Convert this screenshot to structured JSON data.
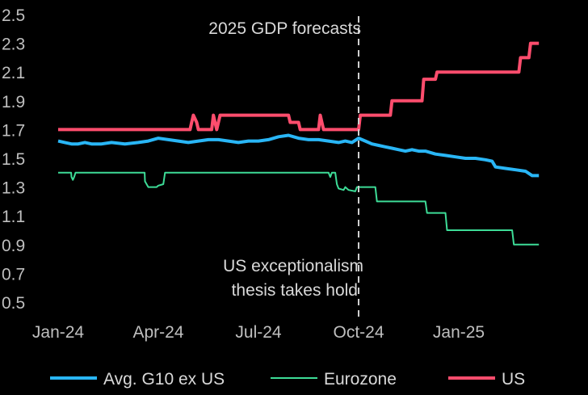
{
  "chart_data": {
    "type": "line",
    "title": "",
    "xlabel": "",
    "ylabel": "",
    "ylim": [
      0.5,
      2.5
    ],
    "xlim": [
      0,
      15
    ],
    "y_ticks": [
      "0.5",
      "0.7",
      "0.9",
      "1.1",
      "1.3",
      "1.5",
      "1.7",
      "1.9",
      "2.1",
      "2.3",
      "2.5"
    ],
    "x_ticks": [
      {
        "label": "Jan-24",
        "x": 0
      },
      {
        "label": "Apr-24",
        "x": 3
      },
      {
        "label": "Jul-24",
        "x": 6
      },
      {
        "label": "Oct-24",
        "x": 9
      },
      {
        "label": "Jan-25",
        "x": 12
      }
    ],
    "annotations": {
      "top": "2025 GDP forecasts",
      "bottom_line1": "US exceptionalism",
      "bottom_line2": "thesis takes hold",
      "vline_x": 9
    },
    "legend_position": "bottom",
    "series": [
      {
        "name": "Avg. G10 ex US",
        "color": "#29b6f6",
        "x": [
          0,
          0.2,
          0.4,
          0.6,
          0.8,
          1.0,
          1.3,
          1.6,
          2.0,
          2.4,
          2.7,
          3.0,
          3.3,
          3.6,
          3.9,
          4.2,
          4.5,
          4.8,
          5.1,
          5.4,
          5.7,
          6.0,
          6.3,
          6.6,
          6.9,
          7.2,
          7.5,
          7.8,
          8.1,
          8.4,
          8.6,
          8.8,
          9.0,
          9.2,
          9.4,
          9.6,
          9.8,
          10.0,
          10.2,
          10.4,
          10.6,
          10.8,
          11.0,
          11.3,
          11.6,
          11.9,
          12.2,
          12.5,
          12.8,
          13.0,
          13.1,
          13.4,
          13.7,
          14.0,
          14.2,
          14.4
        ],
        "values": [
          1.62,
          1.61,
          1.6,
          1.6,
          1.61,
          1.6,
          1.6,
          1.61,
          1.6,
          1.61,
          1.62,
          1.64,
          1.63,
          1.62,
          1.61,
          1.62,
          1.63,
          1.63,
          1.62,
          1.61,
          1.62,
          1.62,
          1.63,
          1.65,
          1.66,
          1.64,
          1.63,
          1.63,
          1.62,
          1.61,
          1.62,
          1.61,
          1.64,
          1.62,
          1.6,
          1.59,
          1.58,
          1.57,
          1.56,
          1.55,
          1.56,
          1.55,
          1.55,
          1.53,
          1.52,
          1.51,
          1.5,
          1.5,
          1.49,
          1.48,
          1.44,
          1.43,
          1.42,
          1.41,
          1.38,
          1.38
        ]
      },
      {
        "name": "Eurozone",
        "color": "#3ddc97",
        "x": [
          0,
          0.39,
          0.4,
          0.44,
          0.48,
          0.52,
          2.59,
          2.6,
          2.7,
          2.95,
          3.0,
          3.15,
          3.2,
          8.1,
          8.15,
          8.2,
          8.3,
          8.35,
          8.4,
          8.55,
          8.6,
          8.7,
          8.9,
          8.95,
          9.0,
          9.5,
          9.55,
          10.3,
          10.35,
          11.0,
          11.05,
          11.6,
          11.65,
          12.3,
          12.35,
          13.6,
          13.65,
          14.4
        ],
        "values": [
          1.4,
          1.4,
          1.37,
          1.35,
          1.37,
          1.4,
          1.4,
          1.34,
          1.3,
          1.3,
          1.31,
          1.32,
          1.4,
          1.4,
          1.37,
          1.4,
          1.4,
          1.32,
          1.29,
          1.28,
          1.3,
          1.28,
          1.27,
          1.3,
          1.3,
          1.3,
          1.2,
          1.2,
          1.2,
          1.2,
          1.12,
          1.12,
          1.0,
          1.0,
          1.0,
          1.0,
          0.9,
          0.9
        ]
      },
      {
        "name": "US",
        "color": "#ff4d6d",
        "x": [
          0,
          3.95,
          4.0,
          4.05,
          4.15,
          4.2,
          4.6,
          4.65,
          4.75,
          4.8,
          4.85,
          4.9,
          6.9,
          6.95,
          7.0,
          7.2,
          7.25,
          7.8,
          7.85,
          7.9,
          7.95,
          8.0,
          9.0,
          9.05,
          9.95,
          10.0,
          10.9,
          10.95,
          11.3,
          11.35,
          12.5,
          12.55,
          13.8,
          13.85,
          14.1,
          14.15,
          14.4
        ],
        "values": [
          1.7,
          1.7,
          1.75,
          1.8,
          1.75,
          1.7,
          1.7,
          1.8,
          1.7,
          1.75,
          1.8,
          1.8,
          1.8,
          1.75,
          1.75,
          1.75,
          1.7,
          1.7,
          1.8,
          1.75,
          1.7,
          1.7,
          1.7,
          1.8,
          1.8,
          1.9,
          1.9,
          2.05,
          2.05,
          2.1,
          2.1,
          2.1,
          2.1,
          2.2,
          2.2,
          2.3,
          2.3
        ]
      }
    ]
  }
}
